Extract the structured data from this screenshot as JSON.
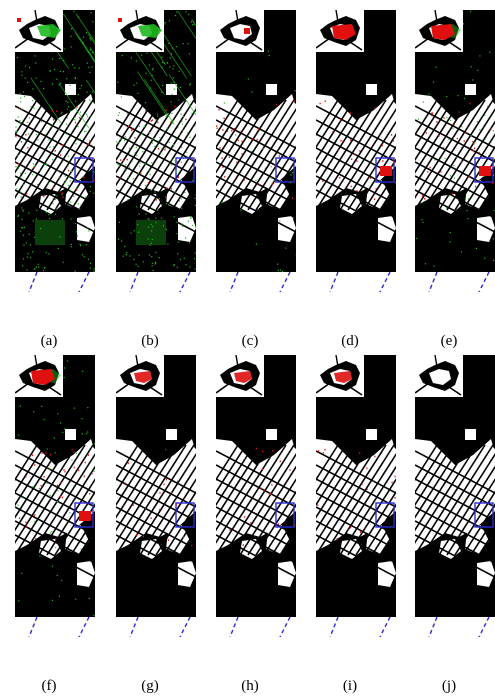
{
  "figure": {
    "panels": [
      {
        "label": "(a)",
        "map": "change-detection-map",
        "style": "heavy-green-noise"
      },
      {
        "label": "(b)",
        "map": "change-detection-map",
        "style": "heavy-green-noise"
      },
      {
        "label": "(c)",
        "map": "change-detection-map",
        "style": "light-noise"
      },
      {
        "label": "(d)",
        "map": "change-detection-map",
        "style": "red-missed"
      },
      {
        "label": "(e)",
        "map": "change-detection-map",
        "style": "red-missed-green"
      },
      {
        "label": "(f)",
        "map": "change-detection-map",
        "style": "red-missed-green"
      },
      {
        "label": "(g)",
        "map": "change-detection-map",
        "style": "clean"
      },
      {
        "label": "(h)",
        "map": "change-detection-map",
        "style": "clean"
      },
      {
        "label": "(i)",
        "map": "change-detection-map",
        "style": "clean"
      },
      {
        "label": "(j)",
        "map": "ground-truth-map",
        "style": "reference"
      }
    ],
    "colors": {
      "background": "#000000",
      "changed": "#ffffff",
      "false_alarm": "#1fb81f",
      "missed": "#e01010",
      "zoom_box": "#2a2ad6"
    }
  }
}
